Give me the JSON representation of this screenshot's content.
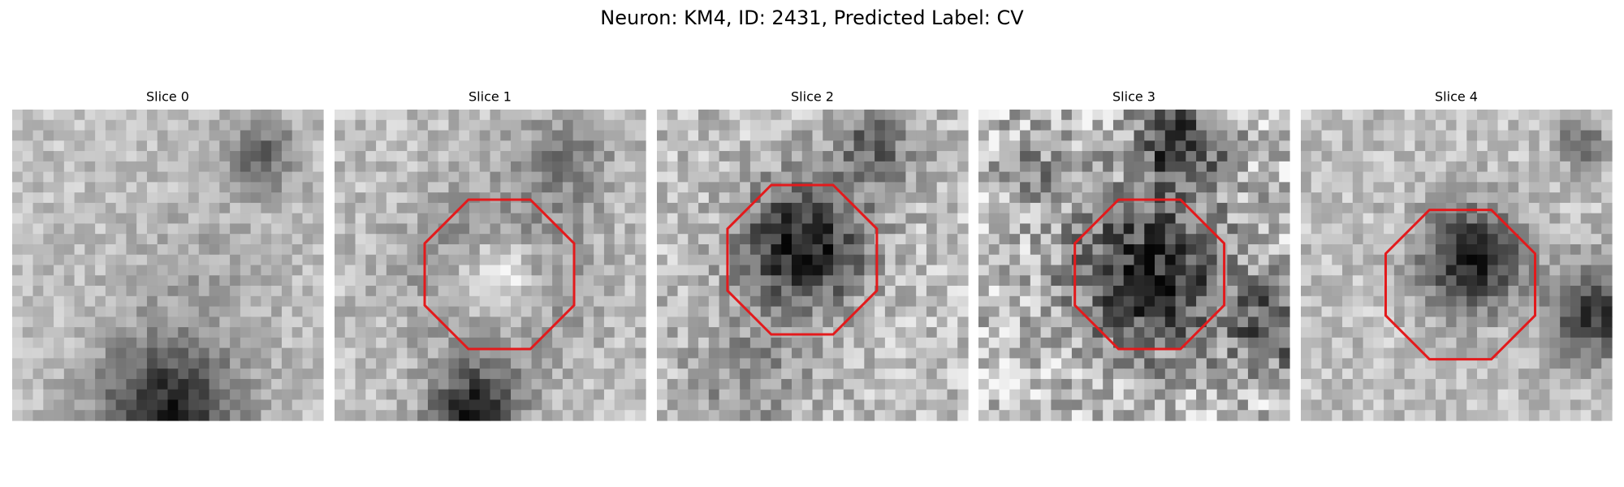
{
  "title": "Neuron: KM4, ID: 2431, Predicted Label: CV",
  "panels": [
    {
      "title": "Slice 0"
    },
    {
      "title": "Slice 1"
    },
    {
      "title": "Slice 2"
    },
    {
      "title": "Slice 3"
    },
    {
      "title": "Slice 4"
    }
  ]
}
